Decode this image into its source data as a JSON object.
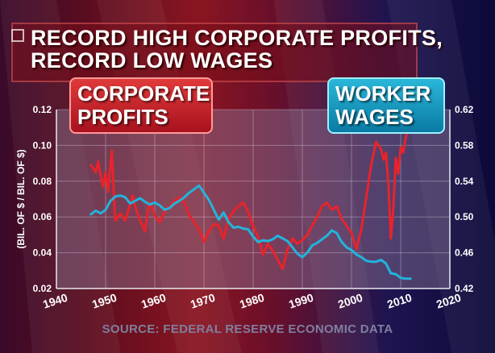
{
  "title": {
    "line1": "RECORD HIGH CORPORATE PROFITS,",
    "line2": "RECORD LOW WAGES"
  },
  "labels": {
    "profits_line1": "CORPORATE",
    "profits_line2": "PROFITS",
    "wages_line1": "WORKER",
    "wages_line2": "WAGES"
  },
  "source": "SOURCE: FEDERAL RESERVE ECONOMIC DATA",
  "chart_data": {
    "type": "line",
    "xlim": [
      1940,
      2020
    ],
    "xticks": [
      "1940",
      "1950",
      "1960",
      "1970",
      "1980",
      "1990",
      "2000",
      "2010",
      "2020"
    ],
    "ylabel": "(BIL. OF $ / BIL. OF $)",
    "y_left": {
      "lim": [
        0.02,
        0.12
      ],
      "ticks": [
        "0.02",
        "0.04",
        "0.06",
        "0.08",
        "0.10",
        "0.12"
      ]
    },
    "y_right": {
      "lim": [
        0.42,
        0.62
      ],
      "ticks": [
        "0.42",
        "0.46",
        "0.50",
        "0.54",
        "0.58",
        "0.62"
      ]
    },
    "grid": true,
    "colors": {
      "profits": "#e8232b",
      "wages": "#22b4dc"
    },
    "series": [
      {
        "axis": "left",
        "x": [
          1947,
          1948,
          1948.5,
          1949,
          1949.5,
          1950,
          1950.5,
          1951,
          1951.3,
          1951.8,
          1952,
          1953,
          1954,
          1955,
          1955.5,
          1956,
          1957,
          1958,
          1958.5,
          1959,
          1960,
          1961,
          1962,
          1963,
          1964,
          1965,
          1966,
          1967,
          1968,
          1969,
          1970,
          1971,
          1972,
          1973,
          1974,
          1975,
          1976,
          1977,
          1978,
          1979,
          1980,
          1981,
          1982,
          1983,
          1984,
          1985,
          1986,
          1987,
          1988,
          1989,
          1990,
          1991,
          1992,
          1993,
          1994,
          1995,
          1996,
          1997,
          1998,
          1999,
          2000,
          2001,
          2002,
          2003,
          2004,
          2005,
          2006,
          2006.5,
          2007,
          2007.5,
          2008,
          2008.5,
          2009,
          2009.5,
          2010,
          2010.5,
          2011,
          2011.5,
          2012
        ],
        "values": [
          0.089,
          0.085,
          0.091,
          0.083,
          0.077,
          0.085,
          0.074,
          0.089,
          0.097,
          0.064,
          0.058,
          0.062,
          0.058,
          0.067,
          0.072,
          0.066,
          0.058,
          0.052,
          0.062,
          0.068,
          0.061,
          0.057,
          0.063,
          0.066,
          0.069,
          0.071,
          0.068,
          0.061,
          0.057,
          0.053,
          0.046,
          0.052,
          0.056,
          0.055,
          0.048,
          0.059,
          0.063,
          0.066,
          0.068,
          0.063,
          0.055,
          0.049,
          0.039,
          0.045,
          0.041,
          0.036,
          0.031,
          0.042,
          0.048,
          0.045,
          0.047,
          0.05,
          0.055,
          0.06,
          0.066,
          0.068,
          0.064,
          0.066,
          0.059,
          0.055,
          0.051,
          0.042,
          0.053,
          0.071,
          0.089,
          0.102,
          0.098,
          0.092,
          0.096,
          0.078,
          0.048,
          0.064,
          0.093,
          0.084,
          0.099,
          0.096,
          0.104,
          0.109,
          0.111
        ]
      },
      {
        "axis": "right",
        "x": [
          1947,
          1948,
          1949,
          1950,
          1951,
          1952,
          1953,
          1954,
          1955,
          1956,
          1957,
          1958,
          1959,
          1960,
          1961,
          1962,
          1963,
          1964,
          1965,
          1966,
          1967,
          1968,
          1969,
          1970,
          1971,
          1972,
          1973,
          1974,
          1975,
          1976,
          1977,
          1978,
          1979,
          1980,
          1981,
          1982,
          1983,
          1984,
          1985,
          1986,
          1987,
          1988,
          1989,
          1990,
          1991,
          1992,
          1993,
          1994,
          1995,
          1996,
          1997,
          1998,
          1999,
          2000,
          2001,
          2002,
          2003,
          2004,
          2005,
          2006,
          2007,
          2008,
          2009,
          2010,
          2011,
          2012
        ],
        "values": [
          0.503,
          0.507,
          0.504,
          0.508,
          0.518,
          0.523,
          0.524,
          0.522,
          0.515,
          0.518,
          0.521,
          0.517,
          0.514,
          0.516,
          0.513,
          0.508,
          0.51,
          0.515,
          0.518,
          0.522,
          0.527,
          0.531,
          0.535,
          0.527,
          0.519,
          0.508,
          0.497,
          0.505,
          0.494,
          0.488,
          0.489,
          0.487,
          0.486,
          0.478,
          0.472,
          0.474,
          0.473,
          0.475,
          0.479,
          0.476,
          0.473,
          0.466,
          0.459,
          0.455,
          0.46,
          0.468,
          0.471,
          0.475,
          0.479,
          0.485,
          0.482,
          0.472,
          0.466,
          0.463,
          0.458,
          0.455,
          0.451,
          0.45,
          0.45,
          0.452,
          0.448,
          0.437,
          0.436,
          0.432,
          0.431,
          0.431
        ]
      }
    ]
  }
}
